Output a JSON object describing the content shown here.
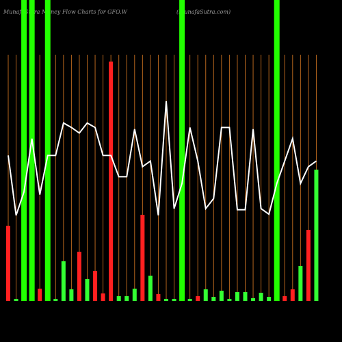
{
  "chart_data": {
    "type": "bar",
    "title": "MunafaSutra Money Flow Charts for GFO.W",
    "subtitle": "(MunafaSutra.com)",
    "ylim": [
      0,
      440
    ],
    "values": [
      110,
      3,
      440,
      440,
      18,
      440,
      3,
      58,
      17,
      72,
      32,
      44,
      11,
      350,
      7,
      7,
      18,
      126,
      37,
      10,
      3,
      3,
      440,
      3,
      7,
      17,
      6,
      15,
      3,
      13,
      13,
      4,
      12,
      6,
      440,
      7,
      17,
      51,
      104,
      192
    ],
    "colors": [
      "#ff2020",
      "#33ff33",
      "#22ff00",
      "#22ff00",
      "#ff2020",
      "#22ff00",
      "#33ff33",
      "#33ff33",
      "#33ff33",
      "#ff2020",
      "#33ff33",
      "#ff2020",
      "#ff2020",
      "#ff2020",
      "#33ff33",
      "#33ff33",
      "#33ff33",
      "#ff2020",
      "#33ff33",
      "#ff2020",
      "#33ff33",
      "#33ff33",
      "#22ff00",
      "#33ff33",
      "#ff2020",
      "#33ff33",
      "#33ff33",
      "#33ff33",
      "#33ff33",
      "#33ff33",
      "#33ff33",
      "#33ff33",
      "#33ff33",
      "#33ff33",
      "#22ff00",
      "#ff2020",
      "#ff2020",
      "#33ff33",
      "#ff2020",
      "#33ff33"
    ],
    "line": {
      "color": "#ffffff",
      "y2lim": [
        0,
        440
      ],
      "values": [
        260,
        153,
        195,
        290,
        190,
        260,
        260,
        318,
        310,
        300,
        318,
        310,
        260,
        260,
        222,
        222,
        307,
        240,
        250,
        153,
        357,
        165,
        210,
        310,
        250,
        165,
        183,
        310,
        310,
        163,
        163,
        307,
        165,
        155,
        210,
        250,
        290,
        210,
        240,
        250
      ]
    },
    "gridline_color": "#b5651d"
  }
}
